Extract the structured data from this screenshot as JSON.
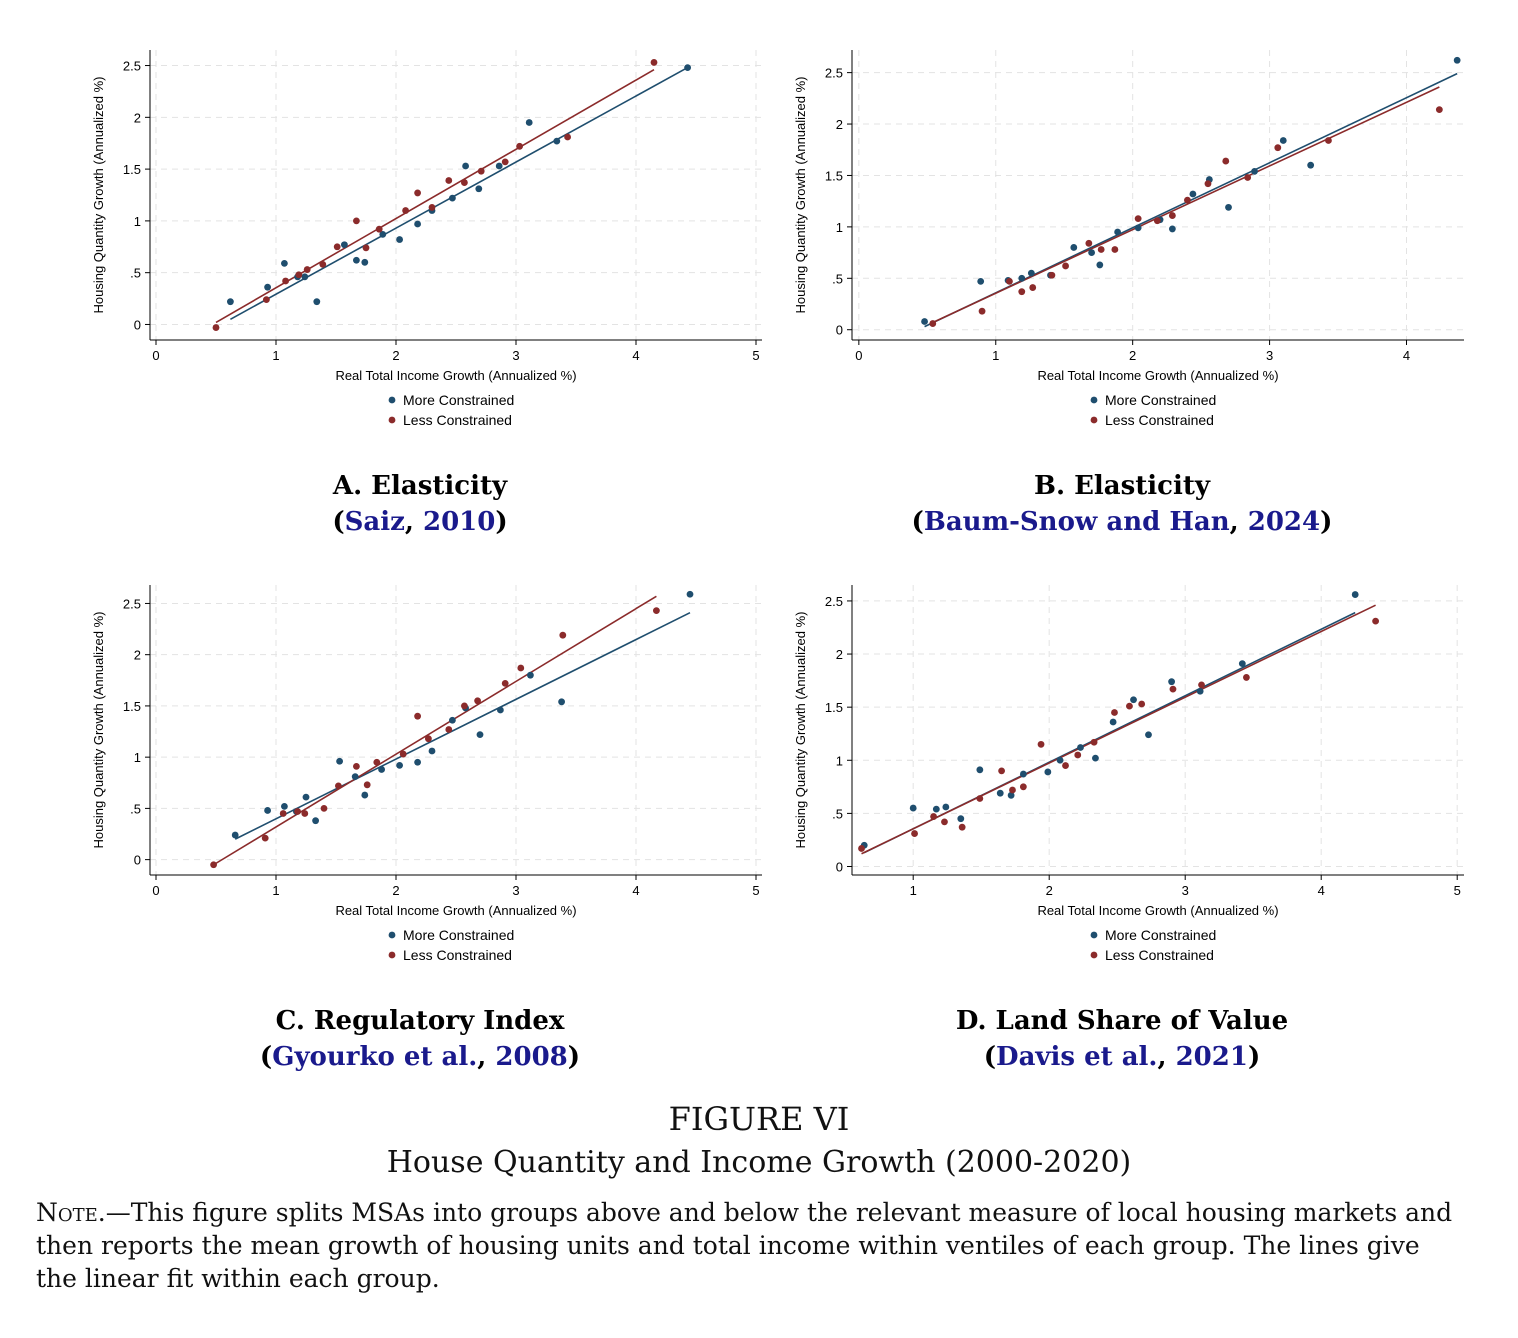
{
  "figure": {
    "label": "FIGURE VI",
    "title": "House Quantity and Income Growth (2000-2020)",
    "note_lead": "Note.",
    "note_text": "—This figure splits MSAs into groups above and below the relevant measure of local housing markets and then reports the mean growth of housing units and total income within ventiles of each group. The lines give the linear fit within each group."
  },
  "colors": {
    "more": "#1f4e6e",
    "less": "#8b2b2b",
    "grid": "#e3e3e3"
  },
  "chart_data": [
    {
      "type": "scatter",
      "panel_title": "A. Elasticity",
      "citation": {
        "author": "Saiz",
        "year": "2010"
      },
      "xlabel": "Real Total Income Growth (Annualized %)",
      "ylabel": "Housing Quantity Growth (Annualized %)",
      "xlim": [
        -0.05,
        5.05
      ],
      "ylim": [
        -0.15,
        2.65
      ],
      "xticks": [
        0,
        1,
        2,
        3,
        4,
        5
      ],
      "xtick_labels": [
        "0",
        "1",
        "2",
        "3",
        "4",
        "5"
      ],
      "yticks": [
        0,
        0.5,
        1,
        1.5,
        2,
        2.5
      ],
      "ytick_labels": [
        "0",
        ".5",
        "1",
        "1.5",
        "2",
        "2.5"
      ],
      "grid": true,
      "legend_position": "bottom",
      "series": [
        {
          "name": "More Constrained",
          "points": [
            [
              0.62,
              0.22
            ],
            [
              0.93,
              0.36
            ],
            [
              1.07,
              0.59
            ],
            [
              1.18,
              0.46
            ],
            [
              1.24,
              0.46
            ],
            [
              1.34,
              0.22
            ],
            [
              1.57,
              0.77
            ],
            [
              1.67,
              0.62
            ],
            [
              1.74,
              0.6
            ],
            [
              1.89,
              0.87
            ],
            [
              2.03,
              0.82
            ],
            [
              2.18,
              0.97
            ],
            [
              2.3,
              1.1
            ],
            [
              2.47,
              1.22
            ],
            [
              2.58,
              1.53
            ],
            [
              2.69,
              1.31
            ],
            [
              2.86,
              1.53
            ],
            [
              3.11,
              1.95
            ],
            [
              3.34,
              1.77
            ],
            [
              4.43,
              2.48
            ]
          ],
          "fit": [
            [
              0.62,
              0.05
            ],
            [
              4.43,
              2.48
            ]
          ]
        },
        {
          "name": "Less Constrained",
          "points": [
            [
              0.5,
              -0.03
            ],
            [
              0.92,
              0.24
            ],
            [
              1.08,
              0.42
            ],
            [
              1.19,
              0.48
            ],
            [
              1.26,
              0.53
            ],
            [
              1.39,
              0.58
            ],
            [
              1.51,
              0.75
            ],
            [
              1.67,
              1.0
            ],
            [
              1.75,
              0.74
            ],
            [
              1.86,
              0.92
            ],
            [
              2.08,
              1.1
            ],
            [
              2.18,
              1.27
            ],
            [
              2.3,
              1.13
            ],
            [
              2.44,
              1.39
            ],
            [
              2.57,
              1.37
            ],
            [
              2.71,
              1.48
            ],
            [
              2.91,
              1.57
            ],
            [
              3.03,
              1.72
            ],
            [
              3.43,
              1.81
            ],
            [
              4.15,
              2.53
            ]
          ],
          "fit": [
            [
              0.5,
              0.02
            ],
            [
              4.15,
              2.46
            ]
          ]
        }
      ]
    },
    {
      "type": "scatter",
      "panel_title": "B. Elasticity",
      "citation": {
        "author": "Baum-Snow and Han",
        "year": "2024"
      },
      "xlabel": "Real Total Income Growth (Annualized %)",
      "ylabel": "Housing Quantity Growth (Annualized %)",
      "xlim": [
        -0.05,
        4.42
      ],
      "ylim": [
        -0.1,
        2.72
      ],
      "xticks": [
        0,
        1,
        2,
        3,
        4
      ],
      "xtick_labels": [
        "0",
        "1",
        "2",
        "3",
        "4"
      ],
      "yticks": [
        0,
        0.5,
        1,
        1.5,
        2,
        2.5
      ],
      "ytick_labels": [
        "0",
        ".5",
        "1",
        "1.5",
        "2",
        "2.5"
      ],
      "grid": true,
      "legend_position": "bottom",
      "series": [
        {
          "name": "More Constrained",
          "points": [
            [
              0.48,
              0.08
            ],
            [
              0.89,
              0.47
            ],
            [
              1.09,
              0.48
            ],
            [
              1.19,
              0.5
            ],
            [
              1.26,
              0.55
            ],
            [
              1.4,
              0.53
            ],
            [
              1.57,
              0.8
            ],
            [
              1.7,
              0.75
            ],
            [
              1.76,
              0.63
            ],
            [
              1.89,
              0.95
            ],
            [
              2.04,
              0.99
            ],
            [
              2.2,
              1.07
            ],
            [
              2.29,
              0.98
            ],
            [
              2.44,
              1.32
            ],
            [
              2.56,
              1.46
            ],
            [
              2.7,
              1.19
            ],
            [
              2.89,
              1.54
            ],
            [
              3.1,
              1.84
            ],
            [
              3.3,
              1.6
            ],
            [
              4.37,
              2.62
            ]
          ],
          "fit": [
            [
              0.48,
              0.03
            ],
            [
              4.37,
              2.49
            ]
          ]
        },
        {
          "name": "Less Constrained",
          "points": [
            [
              0.54,
              0.06
            ],
            [
              0.9,
              0.18
            ],
            [
              1.1,
              0.47
            ],
            [
              1.19,
              0.37
            ],
            [
              1.27,
              0.41
            ],
            [
              1.41,
              0.53
            ],
            [
              1.51,
              0.62
            ],
            [
              1.68,
              0.84
            ],
            [
              1.77,
              0.78
            ],
            [
              1.87,
              0.78
            ],
            [
              2.04,
              1.08
            ],
            [
              2.18,
              1.06
            ],
            [
              2.29,
              1.11
            ],
            [
              2.4,
              1.26
            ],
            [
              2.55,
              1.42
            ],
            [
              2.68,
              1.64
            ],
            [
              2.84,
              1.48
            ],
            [
              3.06,
              1.77
            ],
            [
              3.43,
              1.84
            ],
            [
              4.24,
              2.14
            ]
          ],
          "fit": [
            [
              0.54,
              0.07
            ],
            [
              4.24,
              2.36
            ]
          ]
        }
      ]
    },
    {
      "type": "scatter",
      "panel_title": "C. Regulatory Index",
      "citation": {
        "author": "Gyourko et al.",
        "year": "2008"
      },
      "xlabel": "Real Total Income Growth (Annualized %)",
      "ylabel": "Housing Quantity Growth (Annualized %)",
      "xlim": [
        -0.05,
        5.05
      ],
      "ylim": [
        -0.15,
        2.68
      ],
      "xticks": [
        0,
        1,
        2,
        3,
        4,
        5
      ],
      "xtick_labels": [
        "0",
        "1",
        "2",
        "3",
        "4",
        "5"
      ],
      "yticks": [
        0,
        0.5,
        1,
        1.5,
        2,
        2.5
      ],
      "ytick_labels": [
        "0",
        ".5",
        "1",
        "1.5",
        "2",
        "2.5"
      ],
      "grid": true,
      "legend_position": "bottom",
      "series": [
        {
          "name": "More Constrained",
          "points": [
            [
              0.66,
              0.24
            ],
            [
              0.93,
              0.48
            ],
            [
              1.07,
              0.52
            ],
            [
              1.17,
              0.47
            ],
            [
              1.25,
              0.61
            ],
            [
              1.33,
              0.38
            ],
            [
              1.53,
              0.96
            ],
            [
              1.66,
              0.81
            ],
            [
              1.74,
              0.63
            ],
            [
              1.88,
              0.88
            ],
            [
              2.03,
              0.92
            ],
            [
              2.18,
              0.95
            ],
            [
              2.3,
              1.06
            ],
            [
              2.47,
              1.36
            ],
            [
              2.58,
              1.48
            ],
            [
              2.7,
              1.22
            ],
            [
              2.87,
              1.46
            ],
            [
              3.12,
              1.8
            ],
            [
              3.38,
              1.54
            ],
            [
              4.45,
              2.59
            ]
          ],
          "fit": [
            [
              0.66,
              0.2
            ],
            [
              4.45,
              2.41
            ]
          ]
        },
        {
          "name": "Less Constrained",
          "points": [
            [
              0.48,
              -0.05
            ],
            [
              0.91,
              0.21
            ],
            [
              1.06,
              0.45
            ],
            [
              1.18,
              0.47
            ],
            [
              1.24,
              0.45
            ],
            [
              1.4,
              0.5
            ],
            [
              1.52,
              0.72
            ],
            [
              1.67,
              0.91
            ],
            [
              1.76,
              0.73
            ],
            [
              1.84,
              0.95
            ],
            [
              2.06,
              1.03
            ],
            [
              2.18,
              1.4
            ],
            [
              2.27,
              1.18
            ],
            [
              2.44,
              1.27
            ],
            [
              2.57,
              1.5
            ],
            [
              2.68,
              1.55
            ],
            [
              2.91,
              1.72
            ],
            [
              3.04,
              1.87
            ],
            [
              3.39,
              2.19
            ],
            [
              4.17,
              2.43
            ]
          ],
          "fit": [
            [
              0.48,
              -0.05
            ],
            [
              4.17,
              2.57
            ]
          ]
        }
      ]
    },
    {
      "type": "scatter",
      "panel_title": "D. Land Share of Value",
      "citation": {
        "author": "Davis et al.",
        "year": "2021"
      },
      "xlabel": "Real Total Income Growth (Annualized %)",
      "ylabel": "Housing Quantity Growth (Annualized %)",
      "xlim": [
        0.55,
        5.05
      ],
      "ylim": [
        -0.08,
        2.65
      ],
      "xticks": [
        1,
        2,
        3,
        4,
        5
      ],
      "xtick_labels": [
        "1",
        "2",
        "3",
        "4",
        "5"
      ],
      "yticks": [
        0,
        0.5,
        1,
        1.5,
        2,
        2.5
      ],
      "ytick_labels": [
        "0",
        ".5",
        "1",
        "1.5",
        "2",
        "2.5"
      ],
      "grid": true,
      "legend_position": "bottom",
      "series": [
        {
          "name": "More Constrained",
          "points": [
            [
              0.64,
              0.2
            ],
            [
              1.0,
              0.55
            ],
            [
              1.17,
              0.54
            ],
            [
              1.24,
              0.56
            ],
            [
              1.35,
              0.45
            ],
            [
              1.49,
              0.91
            ],
            [
              1.64,
              0.69
            ],
            [
              1.72,
              0.67
            ],
            [
              1.81,
              0.87
            ],
            [
              1.99,
              0.89
            ],
            [
              2.08,
              1.0
            ],
            [
              2.23,
              1.12
            ],
            [
              2.34,
              1.02
            ],
            [
              2.47,
              1.36
            ],
            [
              2.62,
              1.57
            ],
            [
              2.73,
              1.24
            ],
            [
              2.9,
              1.74
            ],
            [
              3.11,
              1.65
            ],
            [
              3.42,
              1.91
            ],
            [
              4.25,
              2.56
            ]
          ],
          "fit": [
            [
              0.64,
              0.13
            ],
            [
              4.25,
              2.39
            ]
          ]
        },
        {
          "name": "Less Constrained",
          "points": [
            [
              0.62,
              0.17
            ],
            [
              1.01,
              0.31
            ],
            [
              1.15,
              0.47
            ],
            [
              1.23,
              0.42
            ],
            [
              1.36,
              0.37
            ],
            [
              1.49,
              0.64
            ],
            [
              1.65,
              0.9
            ],
            [
              1.73,
              0.72
            ],
            [
              1.81,
              0.75
            ],
            [
              1.94,
              1.15
            ],
            [
              2.12,
              0.95
            ],
            [
              2.21,
              1.05
            ],
            [
              2.33,
              1.17
            ],
            [
              2.48,
              1.45
            ],
            [
              2.59,
              1.51
            ],
            [
              2.68,
              1.53
            ],
            [
              2.91,
              1.67
            ],
            [
              3.12,
              1.71
            ],
            [
              3.45,
              1.78
            ],
            [
              4.4,
              2.31
            ]
          ],
          "fit": [
            [
              0.62,
              0.12
            ],
            [
              4.4,
              2.46
            ]
          ]
        }
      ]
    }
  ]
}
